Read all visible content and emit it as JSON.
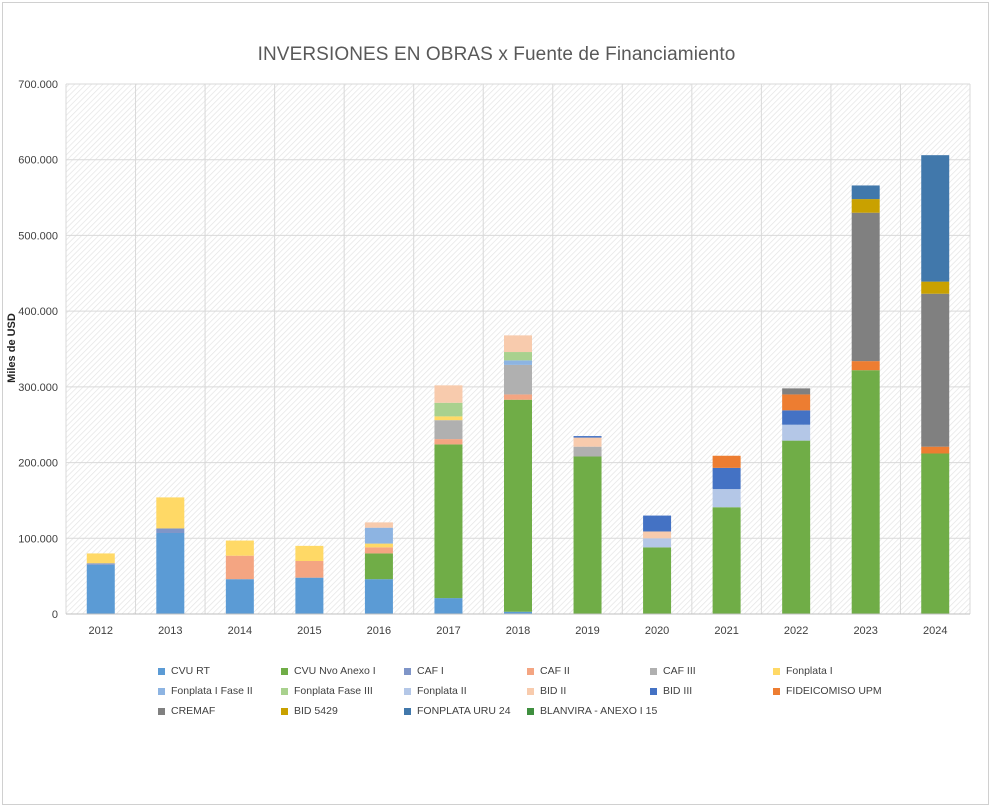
{
  "chart_data": {
    "type": "bar",
    "stacked": true,
    "title": "INVERSIONES EN OBRAS x Fuente de Financiamiento",
    "ylabel": "Miles de USD",
    "xlabel": "",
    "ylim": [
      0,
      700000
    ],
    "yticks": [
      "0",
      "100.000",
      "200.000",
      "300.000",
      "400.000",
      "500.000",
      "600.000",
      "700.000"
    ],
    "ytick_values": [
      0,
      100000,
      200000,
      300000,
      400000,
      500000,
      600000,
      700000
    ],
    "grid": true,
    "legend_position": "bottom",
    "categories": [
      "2012",
      "2013",
      "2014",
      "2015",
      "2016",
      "2017",
      "2018",
      "2019",
      "2020",
      "2021",
      "2022",
      "2023",
      "2024"
    ],
    "series": [
      {
        "name": "CVU RT",
        "color": "#5b9bd5",
        "values": [
          65000,
          107000,
          46000,
          48000,
          46000,
          21000,
          3000,
          0,
          0,
          0,
          0,
          0,
          0
        ]
      },
      {
        "name": "CVU Nvo Anexo I",
        "color": "#70ad47",
        "values": [
          0,
          0,
          0,
          0,
          34000,
          203000,
          280000,
          208000,
          88000,
          141000,
          229000,
          322000,
          212000
        ]
      },
      {
        "name": "CAF I",
        "color": "#7f95c8",
        "values": [
          2000,
          6000,
          0,
          0,
          0,
          0,
          0,
          0,
          0,
          0,
          0,
          0,
          0
        ]
      },
      {
        "name": "CAF II",
        "color": "#f4a582",
        "values": [
          0,
          0,
          31000,
          22000,
          8000,
          7000,
          7000,
          0,
          0,
          0,
          0,
          0,
          0
        ]
      },
      {
        "name": "CAF III",
        "color": "#b0b0b0",
        "values": [
          0,
          0,
          0,
          0,
          0,
          25000,
          39000,
          13000,
          0,
          0,
          0,
          0,
          0
        ]
      },
      {
        "name": "Fonplata I",
        "color": "#ffd966",
        "values": [
          13000,
          41000,
          20000,
          20000,
          5000,
          5000,
          0,
          0,
          0,
          0,
          0,
          0,
          0
        ]
      },
      {
        "name": "Fonplata I Fase II",
        "color": "#8db4e2",
        "values": [
          0,
          0,
          0,
          0,
          21000,
          0,
          6000,
          0,
          0,
          0,
          0,
          0,
          0
        ]
      },
      {
        "name": "Fonplata Fase III",
        "color": "#a9d18e",
        "values": [
          0,
          0,
          0,
          0,
          0,
          18000,
          11000,
          0,
          0,
          0,
          0,
          0,
          0
        ]
      },
      {
        "name": "Fonplata II",
        "color": "#b4c7e7",
        "values": [
          0,
          0,
          0,
          0,
          0,
          0,
          0,
          0,
          12000,
          24000,
          21000,
          0,
          0
        ]
      },
      {
        "name": "BID II",
        "color": "#f8cbad",
        "values": [
          0,
          0,
          0,
          0,
          7000,
          23000,
          22000,
          12000,
          9000,
          0,
          0,
          0,
          0
        ]
      },
      {
        "name": "BID III",
        "color": "#4472c4",
        "values": [
          0,
          0,
          0,
          0,
          0,
          0,
          0,
          2000,
          21000,
          28000,
          19000,
          0,
          0
        ]
      },
      {
        "name": "FIDEICOMISO UPM",
        "color": "#ed7d31",
        "values": [
          0,
          0,
          0,
          0,
          0,
          0,
          0,
          0,
          0,
          16000,
          21000,
          12000,
          9000
        ]
      },
      {
        "name": "CREMAF",
        "color": "#808080",
        "values": [
          0,
          0,
          0,
          0,
          0,
          0,
          0,
          0,
          0,
          0,
          8000,
          196000,
          202000
        ]
      },
      {
        "name": "BID 5429",
        "color": "#c9a100",
        "values": [
          0,
          0,
          0,
          0,
          0,
          0,
          0,
          0,
          0,
          0,
          0,
          18000,
          16000
        ]
      },
      {
        "name": "FONPLATA URU 24",
        "color": "#4178ab",
        "values": [
          0,
          0,
          0,
          0,
          0,
          0,
          0,
          0,
          0,
          0,
          0,
          18000,
          167000
        ]
      },
      {
        "name": "BLANVIRA - ANEXO I 15",
        "color": "#3f8f3f",
        "values": [
          0,
          0,
          0,
          0,
          0,
          0,
          0,
          0,
          0,
          0,
          0,
          0,
          0
        ]
      }
    ]
  }
}
